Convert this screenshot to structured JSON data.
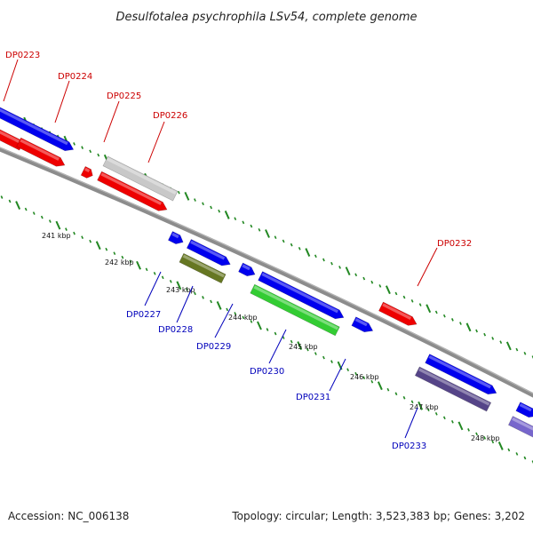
{
  "title": "Desulfotalea psychrophila LSv54, complete genome",
  "footer": {
    "accession": "Accession: NC_006138",
    "topology": "Topology: circular; Length: 3,523,383 bp; Genes: 3,202"
  },
  "colors": {
    "forward": "#0000ee",
    "reverse": "#ee0000",
    "backbone": "#888888",
    "tick": "#228822",
    "label_blue": "#0000bb",
    "label_red": "#cc0000",
    "grey": "#c8c8c8",
    "olive": "#667722",
    "green": "#33cc33",
    "slate": "#554488",
    "lavender": "#7766cc"
  },
  "ruler_labels": [
    "241 kbp",
    "242 kbp",
    "243 kbp",
    "244 kbp",
    "245 kbp",
    "246 kbp",
    "247 kbp",
    "248 kbp"
  ],
  "genes": [
    {
      "name": "DP0223",
      "color": "#cc0000"
    },
    {
      "name": "DP0224",
      "color": "#cc0000"
    },
    {
      "name": "DP0225",
      "color": "#cc0000"
    },
    {
      "name": "DP0226",
      "color": "#cc0000"
    },
    {
      "name": "DP0227",
      "color": "#0000bb"
    },
    {
      "name": "DP0228",
      "color": "#0000bb"
    },
    {
      "name": "DP0229",
      "color": "#0000bb"
    },
    {
      "name": "DP0230",
      "color": "#0000bb"
    },
    {
      "name": "DP0231",
      "color": "#0000bb"
    },
    {
      "name": "DP0232",
      "color": "#cc0000"
    },
    {
      "name": "DP0233",
      "color": "#0000bb"
    }
  ]
}
